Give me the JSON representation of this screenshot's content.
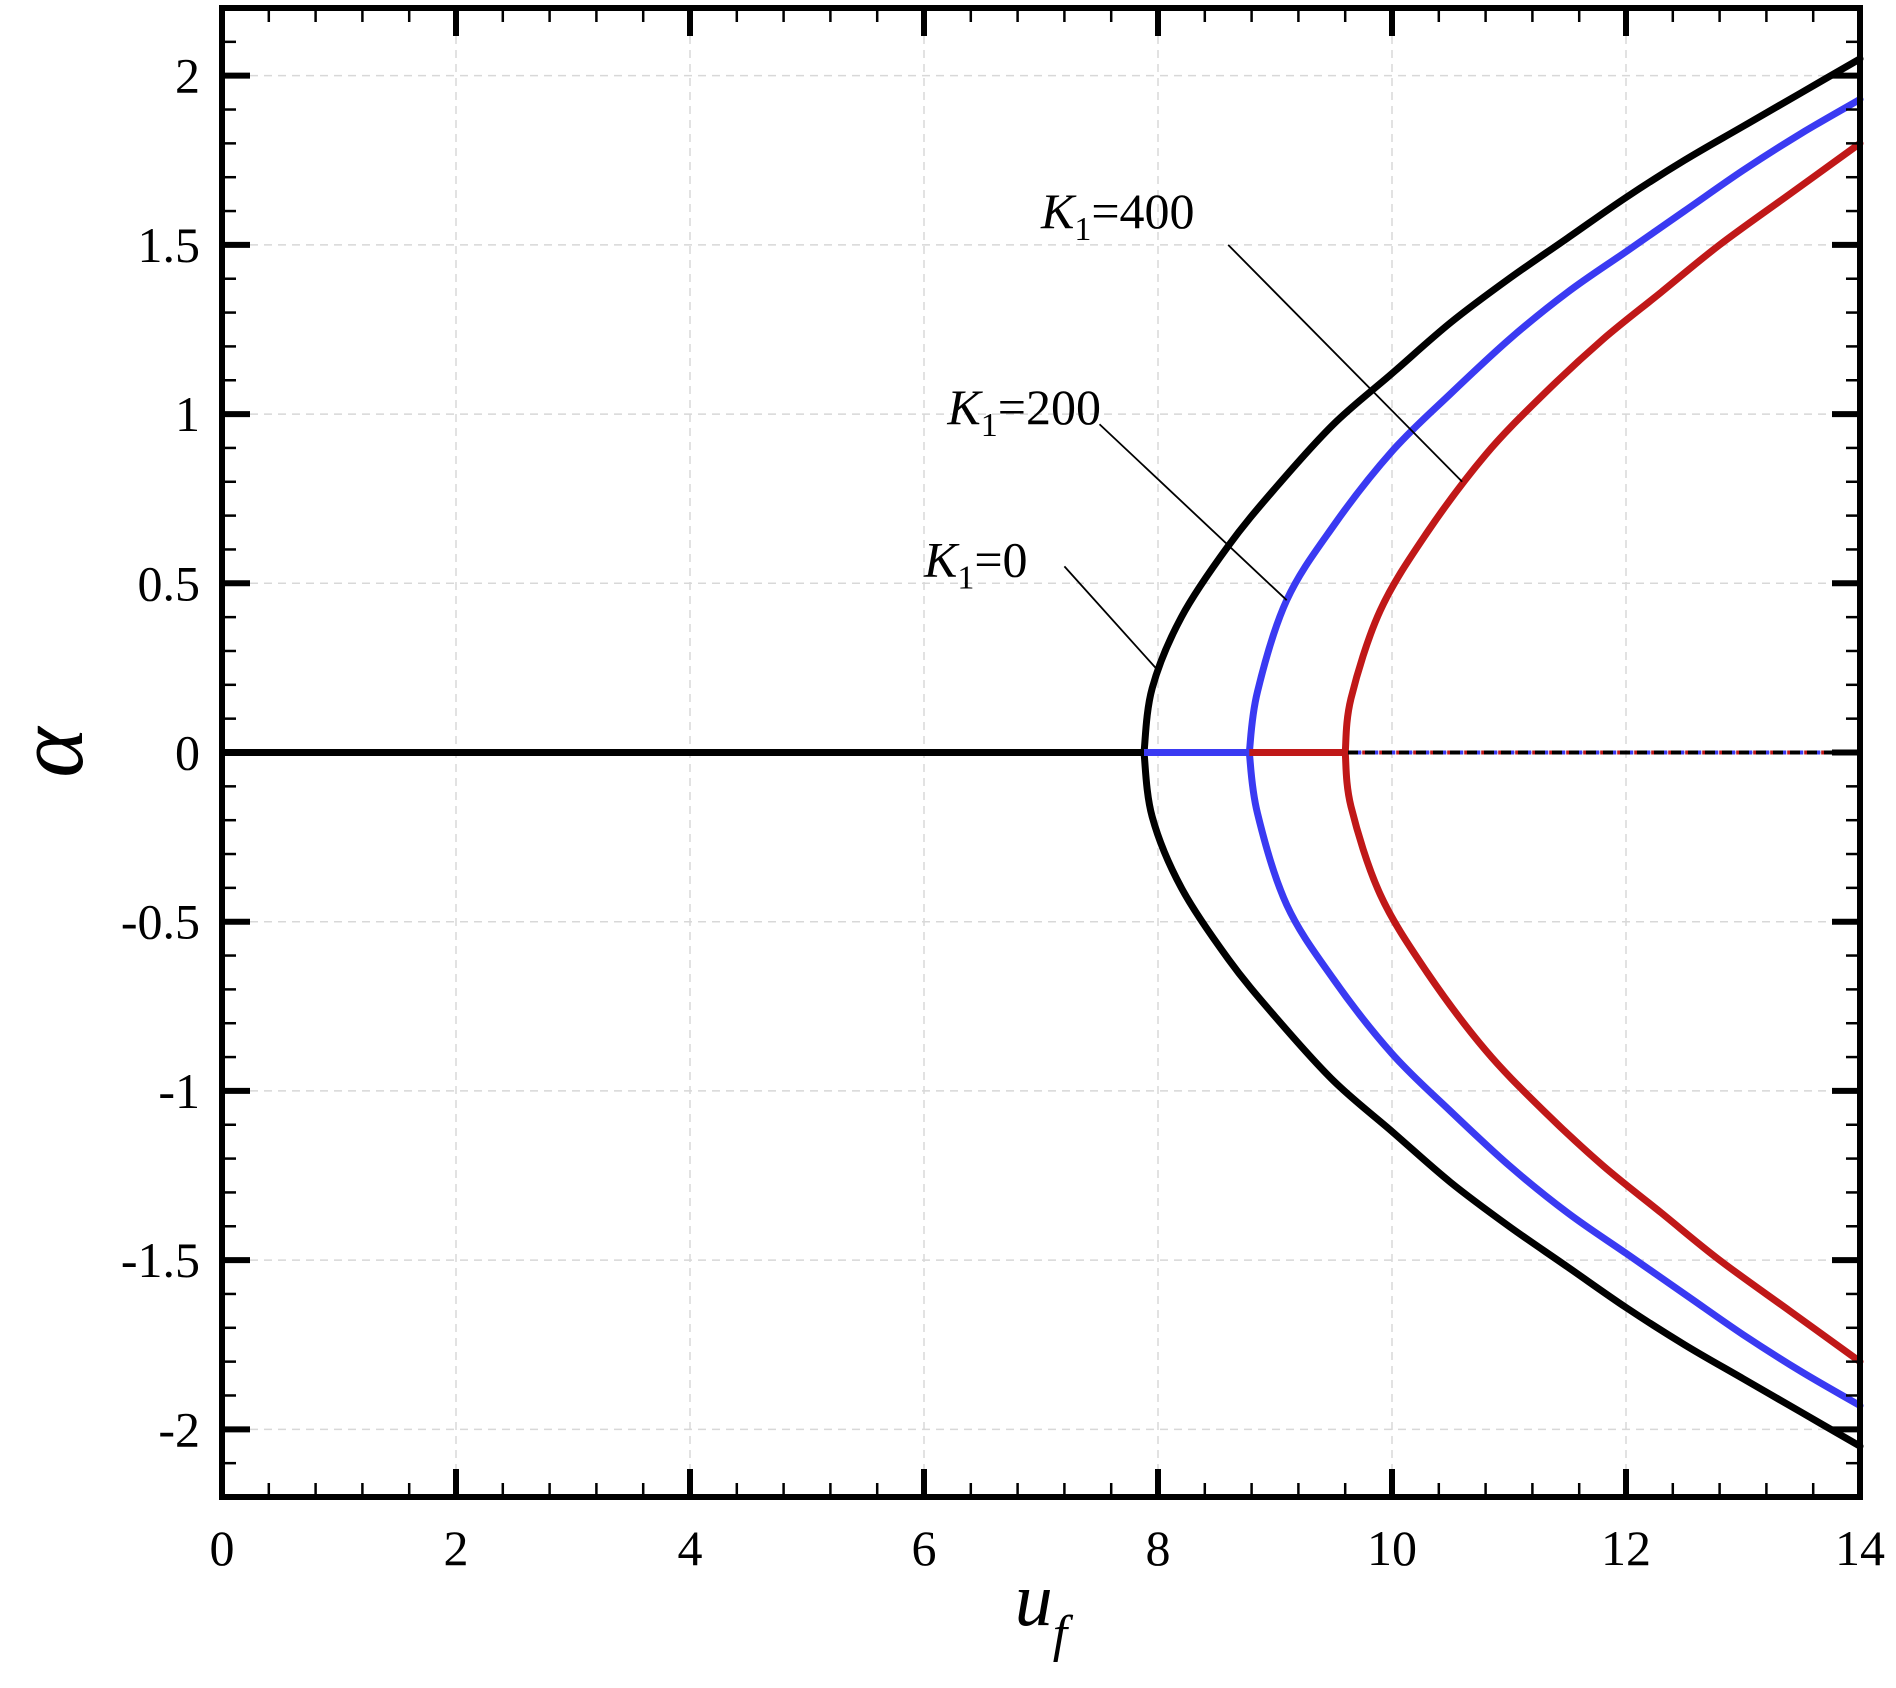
{
  "chart_data": {
    "type": "line",
    "title": "",
    "xlabel": "u",
    "xlabel_sub": "f",
    "ylabel": "α",
    "xlim": [
      0,
      14
    ],
    "ylim": [
      -2.2,
      2.2
    ],
    "x_ticks": [
      0,
      2,
      4,
      6,
      8,
      10,
      12,
      14
    ],
    "x_tick_labels": [
      "0",
      "2",
      "4",
      "6",
      "8",
      "10",
      "12",
      "14"
    ],
    "y_ticks": [
      -2,
      -1.5,
      -1,
      -0.5,
      0,
      0.5,
      1,
      1.5,
      2
    ],
    "y_tick_labels": [
      "-2",
      "-1.5",
      "-1",
      "-0.5",
      "0",
      "0.5",
      "1",
      "1.5",
      "2"
    ],
    "grid": true,
    "legend": "none",
    "series": [
      {
        "key": "k0",
        "color": "#000000",
        "onset_uf": 7.88,
        "stable_branch": {
          "x": [
            0,
            7.88
          ],
          "y": [
            0,
            0
          ]
        },
        "unstable_branch": {
          "x": [
            7.88,
            14
          ],
          "y": [
            0,
            0
          ]
        },
        "bifurcation_upper": {
          "x": [
            7.88,
            7.95,
            8.2,
            8.6,
            9.0,
            9.5,
            10.0,
            10.5,
            11.0,
            11.5,
            12.0,
            12.5,
            13.0,
            13.5,
            14.0
          ],
          "y": [
            0,
            0.19,
            0.4,
            0.61,
            0.78,
            0.97,
            1.12,
            1.27,
            1.4,
            1.52,
            1.64,
            1.75,
            1.85,
            1.95,
            2.05
          ]
        },
        "bifurcation_lower": {
          "x": [
            7.88,
            7.95,
            8.2,
            8.6,
            9.0,
            9.5,
            10.0,
            10.5,
            11.0,
            11.5,
            12.0,
            12.5,
            13.0,
            13.5,
            14.0
          ],
          "y": [
            0,
            -0.19,
            -0.4,
            -0.61,
            -0.78,
            -0.97,
            -1.12,
            -1.27,
            -1.4,
            -1.52,
            -1.64,
            -1.75,
            -1.85,
            -1.95,
            -2.05
          ]
        }
      },
      {
        "key": "k200",
        "color": "#3a3af2",
        "onset_uf": 8.78,
        "stable_branch": {
          "x": [
            0,
            8.78
          ],
          "y": [
            0,
            0
          ]
        },
        "unstable_branch": {
          "x": [
            8.78,
            14
          ],
          "y": [
            0,
            0
          ]
        },
        "bifurcation_upper": {
          "x": [
            8.78,
            8.85,
            9.1,
            9.5,
            10.0,
            10.5,
            11.0,
            11.5,
            12.0,
            12.5,
            13.0,
            13.5,
            14.0
          ],
          "y": [
            0,
            0.18,
            0.45,
            0.67,
            0.89,
            1.06,
            1.22,
            1.36,
            1.48,
            1.6,
            1.72,
            1.83,
            1.93
          ]
        },
        "bifurcation_lower": {
          "x": [
            8.78,
            8.85,
            9.1,
            9.5,
            10.0,
            10.5,
            11.0,
            11.5,
            12.0,
            12.5,
            13.0,
            13.5,
            14.0
          ],
          "y": [
            0,
            -0.18,
            -0.45,
            -0.67,
            -0.89,
            -1.06,
            -1.22,
            -1.36,
            -1.48,
            -1.6,
            -1.72,
            -1.83,
            -1.93
          ]
        }
      },
      {
        "key": "k400",
        "color": "#c01818",
        "onset_uf": 9.6,
        "stable_branch": {
          "x": [
            0,
            9.6
          ],
          "y": [
            0,
            0
          ]
        },
        "unstable_branch": {
          "x": [
            9.6,
            14
          ],
          "y": [
            0,
            0
          ]
        },
        "bifurcation_upper": {
          "x": [
            9.6,
            9.65,
            9.9,
            10.3,
            10.8,
            11.3,
            11.8,
            12.3,
            12.8,
            13.4,
            14.0
          ],
          "y": [
            0,
            0.16,
            0.42,
            0.65,
            0.88,
            1.06,
            1.22,
            1.36,
            1.5,
            1.65,
            1.8
          ]
        },
        "bifurcation_lower": {
          "x": [
            9.6,
            9.65,
            9.9,
            10.3,
            10.8,
            11.3,
            11.8,
            12.3,
            12.8,
            13.4,
            14.0
          ],
          "y": [
            0,
            -0.16,
            -0.42,
            -0.65,
            -0.88,
            -1.06,
            -1.22,
            -1.36,
            -1.5,
            -1.65,
            -1.8
          ]
        }
      }
    ],
    "annotations": [
      {
        "key": "k0",
        "italic": "K",
        "sub": "1",
        "rest": "=0",
        "text_x": 6.0,
        "text_y": 0.52,
        "line_from": [
          7.2,
          0.55
        ],
        "line_to": [
          7.98,
          0.25
        ]
      },
      {
        "key": "k200",
        "italic": "K",
        "sub": "1",
        "rest": "=200",
        "text_x": 6.2,
        "text_y": 0.97,
        "line_from": [
          7.5,
          0.97
        ],
        "line_to": [
          9.1,
          0.45
        ]
      },
      {
        "key": "k400",
        "italic": "K",
        "sub": "1",
        "rest": "=400",
        "text_x": 7.0,
        "text_y": 1.55,
        "line_from": [
          8.6,
          1.5
        ],
        "line_to": [
          10.6,
          0.8
        ]
      }
    ]
  }
}
